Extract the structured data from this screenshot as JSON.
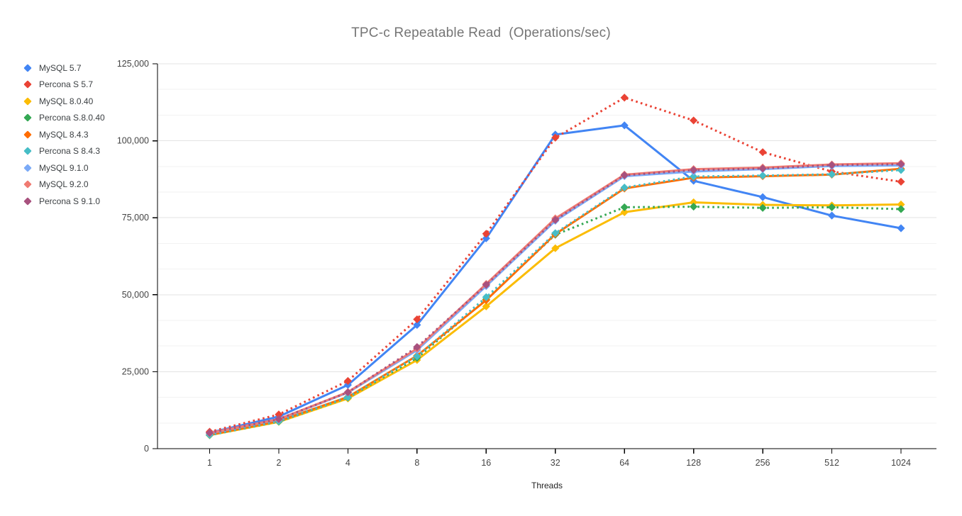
{
  "chart_data": {
    "type": "line",
    "title": "TPC-c Repeatable Read  (Operations/sec)",
    "xlabel": "Threads",
    "x_categories": [
      "1",
      "2",
      "4",
      "8",
      "16",
      "32",
      "64",
      "128",
      "256",
      "512",
      "1024"
    ],
    "ylim": [
      0,
      125000
    ],
    "y_ticks": [
      0,
      25000,
      50000,
      75000,
      100000,
      125000
    ],
    "y_tick_labels": [
      "0",
      "25,000",
      "50,000",
      "75,000",
      "100,000",
      "125,000"
    ],
    "grid": "horizontal major gridlines with 2 minor gridlines per interval",
    "legend_position": "left",
    "axis_color": "#000000",
    "major_grid_color": "#e3e3e3",
    "minor_grid_color": "#f2f2f2",
    "tick_label_color": "#444444",
    "series": [
      {
        "name": "MySQL 5.7",
        "color": "#4285F4",
        "style": "solid",
        "values": [
          5200,
          10400,
          20700,
          40200,
          68300,
          102000,
          105000,
          87000,
          81700,
          75700,
          71600
        ]
      },
      {
        "name": "Percona S 5.7",
        "color": "#EA4335",
        "style": "dotted",
        "values": [
          5500,
          11100,
          22000,
          42000,
          69800,
          101000,
          114000,
          106600,
          96300,
          90000,
          86700
        ]
      },
      {
        "name": "MySQL 8.0.40",
        "color": "#FBBC04",
        "style": "solid",
        "values": [
          4400,
          8700,
          16300,
          28800,
          46200,
          65100,
          76800,
          80000,
          79200,
          79000,
          79300
        ]
      },
      {
        "name": "Percona S.8.0.40",
        "color": "#34A853",
        "style": "dotted",
        "values": [
          4400,
          8800,
          16600,
          29500,
          48500,
          69500,
          78400,
          78600,
          78200,
          78400,
          77800
        ]
      },
      {
        "name": "MySQL 8.4.3",
        "color": "#FF6D01",
        "style": "solid",
        "values": [
          4500,
          9000,
          16800,
          30200,
          48200,
          69700,
          84500,
          88000,
          88500,
          89000,
          90900
        ]
      },
      {
        "name": "Percona S 8.4.3",
        "color": "#46BDC6",
        "style": "dotted",
        "values": [
          4500,
          8900,
          16700,
          30000,
          49200,
          70000,
          84800,
          88400,
          88700,
          89100,
          90500
        ]
      },
      {
        "name": "MySQL 9.1.0",
        "color": "#7BAAF7",
        "style": "solid",
        "values": [
          5000,
          9500,
          18200,
          32000,
          52800,
          74000,
          88500,
          90000,
          90800,
          91800,
          92000
        ]
      },
      {
        "name": "MySQL 9.2.0",
        "color": "#F07B72",
        "style": "solid",
        "values": [
          5100,
          9600,
          18400,
          32500,
          53500,
          74800,
          89000,
          90800,
          91300,
          92300,
          92700
        ]
      },
      {
        "name": "Percona S 9.1.0",
        "color": "#A8517E",
        "style": "dotted",
        "values": [
          5100,
          9600,
          18300,
          33000,
          53200,
          74300,
          88800,
          90500,
          91000,
          92100,
          92400
        ]
      }
    ]
  }
}
